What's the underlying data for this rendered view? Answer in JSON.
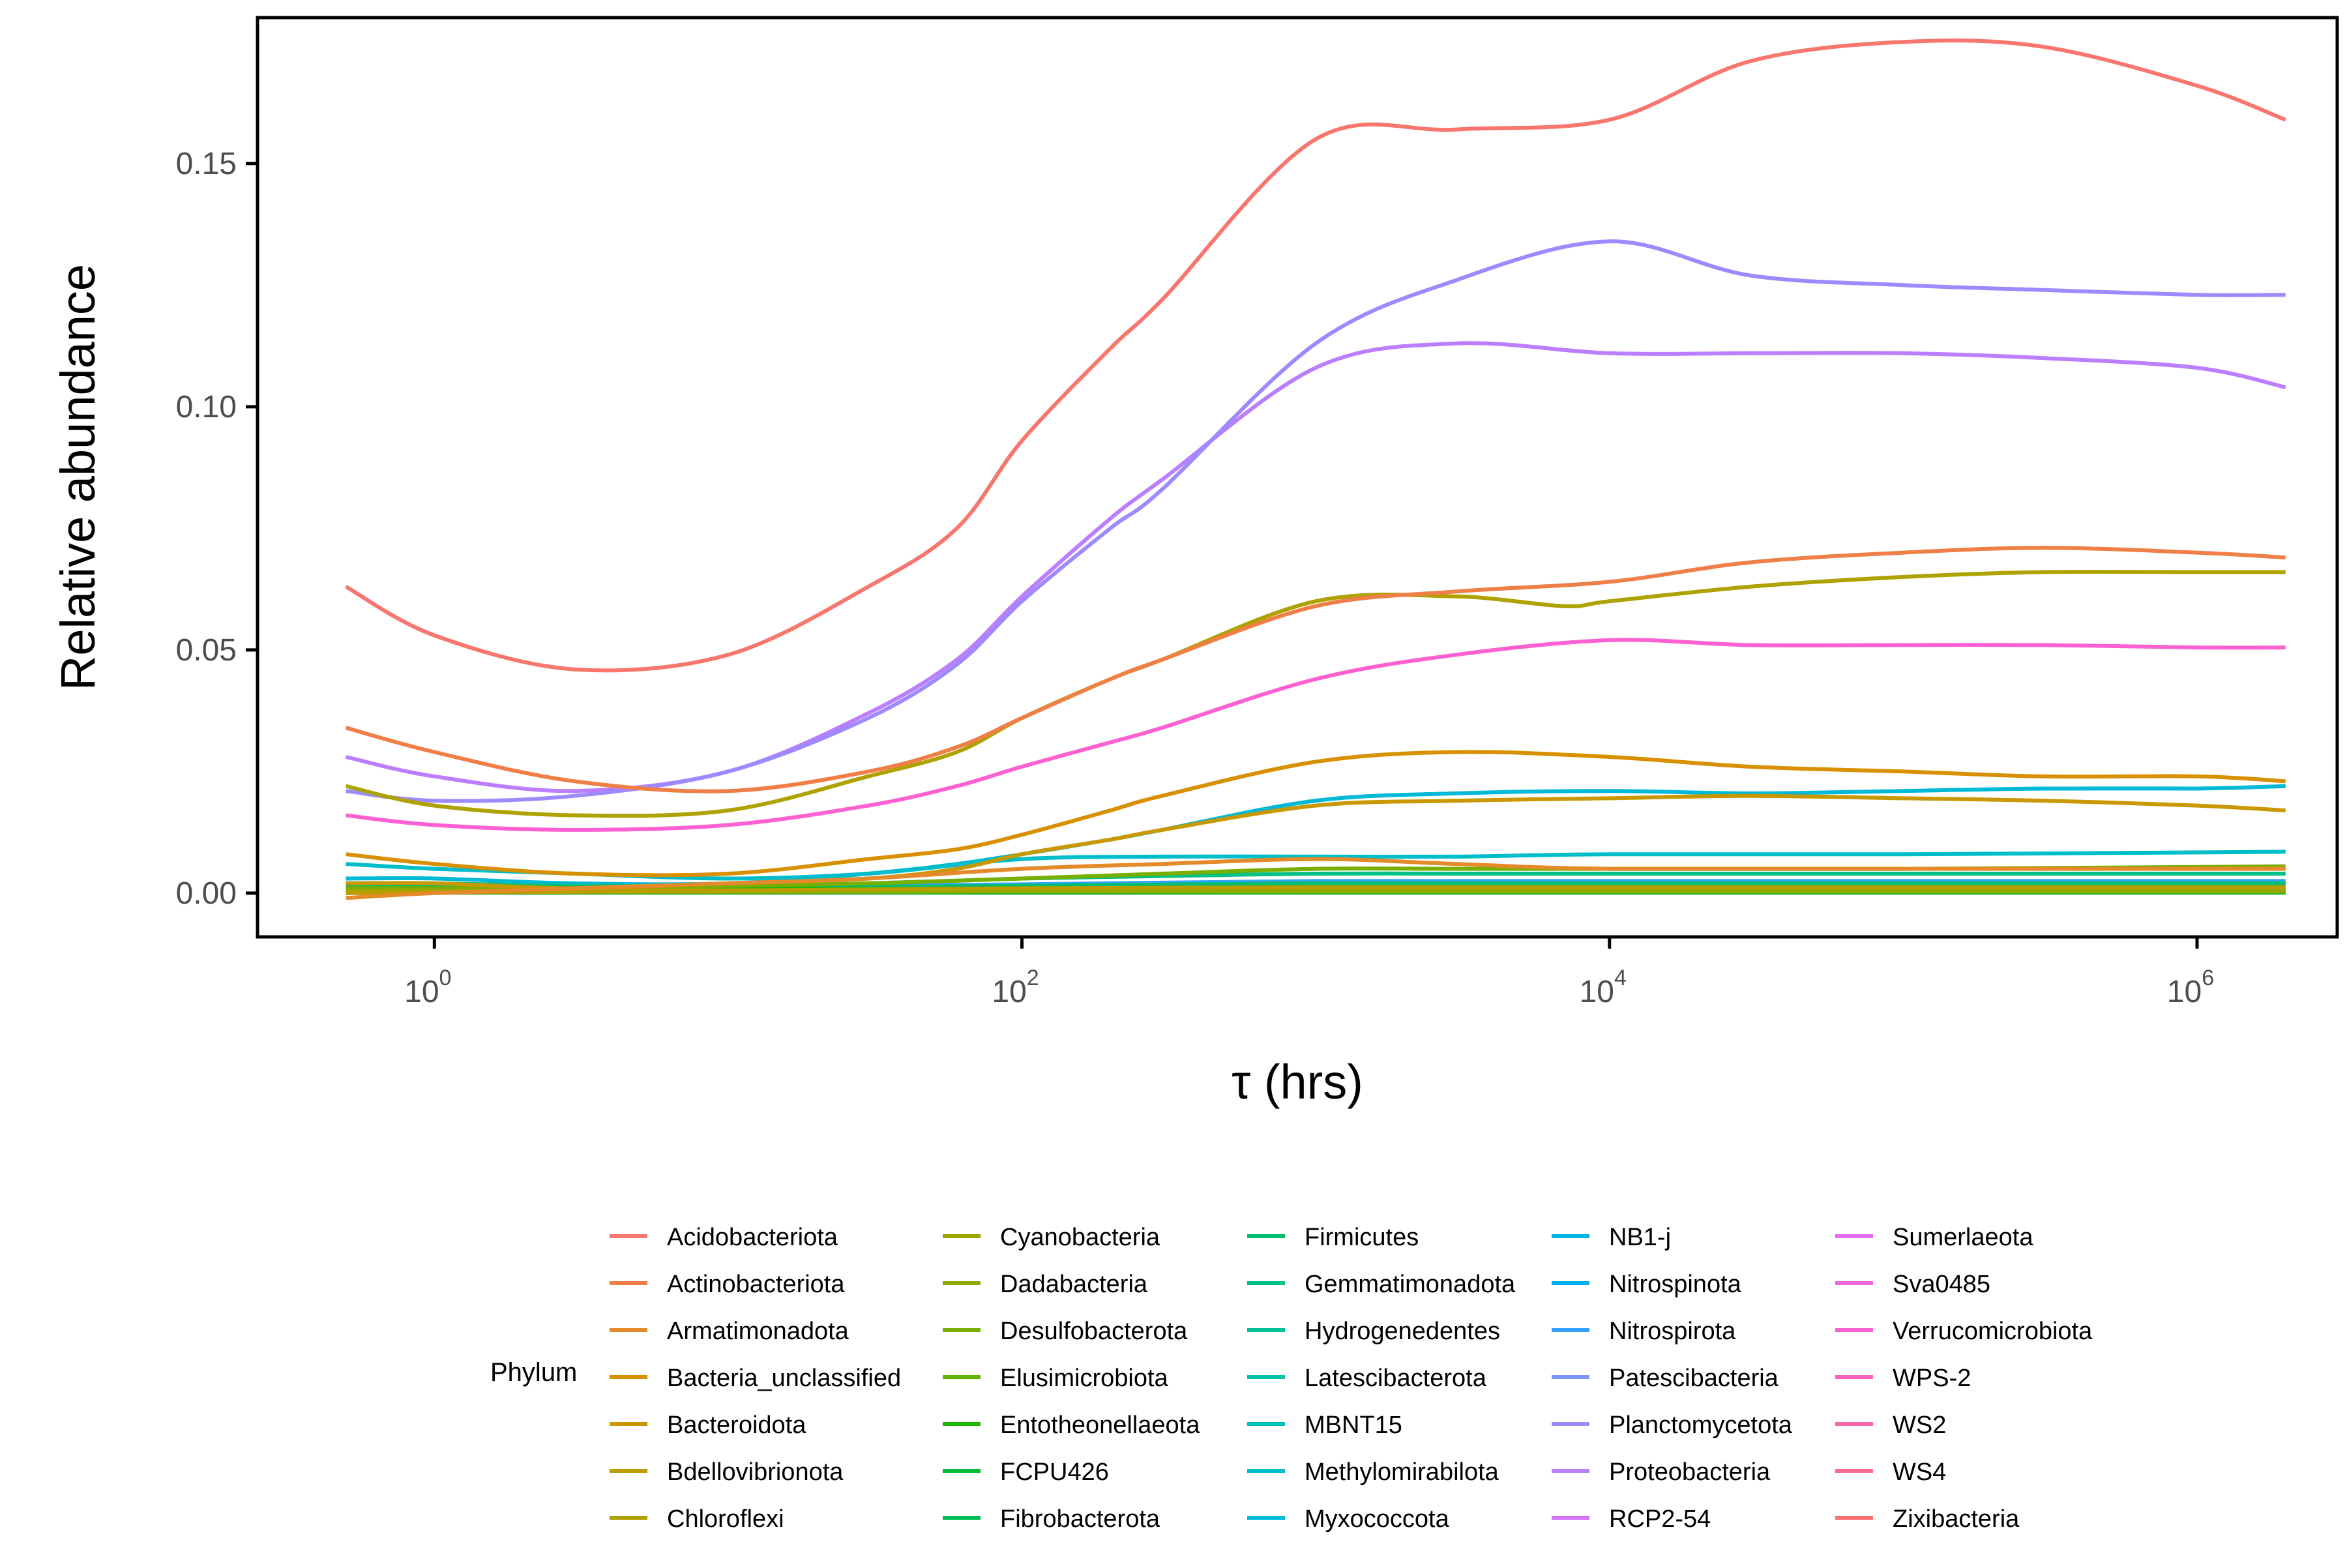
{
  "chart_data": {
    "type": "line",
    "title": "",
    "xlabel": "τ (hrs)",
    "ylabel": "Relative abundance",
    "x_scale": "log10",
    "xlim": [
      0.25,
      3000000
    ],
    "ylim": [
      -0.009,
      0.18
    ],
    "x_ticks": [
      {
        "value": 1,
        "base": "10",
        "exp": "0"
      },
      {
        "value": 100,
        "base": "10",
        "exp": "2"
      },
      {
        "value": 10000,
        "base": "10",
        "exp": "4"
      },
      {
        "value": 1000000,
        "base": "10",
        "exp": "6"
      }
    ],
    "y_ticks": [
      {
        "value": 0.0,
        "label": "0.00"
      },
      {
        "value": 0.05,
        "label": "0.05"
      },
      {
        "value": 0.1,
        "label": "0.10"
      },
      {
        "value": 0.15,
        "label": "0.15"
      }
    ],
    "grid": false,
    "legend": {
      "title": "Phylum",
      "placement": "bottom",
      "columns": 5
    },
    "series": [
      {
        "name": "Acidobacteriota",
        "color": "#F8766D",
        "x": [
          0.5,
          1,
          3,
          10,
          30,
          60,
          100,
          200,
          300,
          1000,
          3000,
          10000,
          30000,
          100000,
          300000,
          1000000,
          2000000
        ],
        "y": [
          0.063,
          0.053,
          0.046,
          0.049,
          0.063,
          0.075,
          0.093,
          0.112,
          0.122,
          0.155,
          0.157,
          0.159,
          0.171,
          0.175,
          0.174,
          0.166,
          0.159
        ]
      },
      {
        "name": "Actinobacteriota",
        "color": "#EF7F47",
        "x": [
          0.5,
          1,
          3,
          10,
          30,
          60,
          100,
          200,
          300,
          1000,
          3000,
          10000,
          30000,
          100000,
          300000,
          1000000,
          2000000
        ],
        "y": [
          0.034,
          0.029,
          0.023,
          0.021,
          0.025,
          0.03,
          0.036,
          0.044,
          0.048,
          0.059,
          0.062,
          0.064,
          0.068,
          0.07,
          0.071,
          0.07,
          0.069
        ]
      },
      {
        "name": "Armatimonadota",
        "color": "#E48A2A",
        "x": [
          0.5,
          1,
          3,
          10,
          30,
          100,
          300,
          1000,
          3000,
          10000,
          100000,
          2000000
        ],
        "y": [
          -0.001,
          0.0,
          0.001,
          0.002,
          0.003,
          0.005,
          0.006,
          0.007,
          0.006,
          0.005,
          0.005,
          0.005
        ]
      },
      {
        "name": "Bacteria_unclassified",
        "color": "#D89000",
        "x": [
          0.5,
          1,
          3,
          10,
          30,
          60,
          100,
          200,
          300,
          1000,
          3000,
          10000,
          30000,
          100000,
          300000,
          1000000,
          2000000
        ],
        "y": [
          0.008,
          0.006,
          0.004,
          0.004,
          0.007,
          0.009,
          0.012,
          0.017,
          0.02,
          0.027,
          0.029,
          0.028,
          0.026,
          0.025,
          0.024,
          0.024,
          0.023
        ]
      },
      {
        "name": "Bacteroidota",
        "color": "#C99800",
        "x": [
          0.5,
          1,
          3,
          10,
          30,
          60,
          100,
          200,
          300,
          1000,
          3000,
          10000,
          30000,
          100000,
          300000,
          1000000,
          2000000
        ],
        "y": [
          0.002,
          0.002,
          0.001,
          0.002,
          0.003,
          0.005,
          0.008,
          0.011,
          0.013,
          0.018,
          0.019,
          0.0195,
          0.02,
          0.0195,
          0.019,
          0.018,
          0.017
        ]
      },
      {
        "name": "Bdellovibrionota",
        "color": "#BB9D00",
        "x": [
          0.5,
          10,
          100,
          1000,
          10000,
          100000,
          2000000
        ],
        "y": [
          0.0,
          0.0005,
          0.001,
          0.0012,
          0.0012,
          0.0012,
          0.0012
        ]
      },
      {
        "name": "Chloroflexi",
        "color": "#AEA200",
        "x": [
          0.5,
          1,
          3,
          10,
          30,
          60,
          100,
          200,
          300,
          1000,
          3000,
          7000,
          10000,
          30000,
          100000,
          300000,
          1000000,
          2000000
        ],
        "y": [
          0.022,
          0.018,
          0.016,
          0.017,
          0.024,
          0.029,
          0.036,
          0.044,
          0.048,
          0.06,
          0.061,
          0.059,
          0.06,
          0.063,
          0.065,
          0.066,
          0.066,
          0.066
        ]
      },
      {
        "name": "Cyanobacteria",
        "color": "#9FA600",
        "x": [
          0.5,
          10,
          100,
          1000,
          10000,
          100000,
          2000000
        ],
        "y": [
          0.0005,
          0.0006,
          0.0008,
          0.001,
          0.001,
          0.001,
          0.001
        ]
      },
      {
        "name": "Dadabacteria",
        "color": "#8EAB00",
        "x": [
          0.5,
          10,
          100,
          1000,
          10000,
          100000,
          2000000
        ],
        "y": [
          0.0002,
          0.0003,
          0.0004,
          0.0004,
          0.0004,
          0.0004,
          0.0004
        ]
      },
      {
        "name": "Desulfobacterota",
        "color": "#78AF00",
        "x": [
          0.5,
          1,
          3,
          10,
          30,
          100,
          300,
          1000,
          3000,
          10000,
          100000,
          2000000
        ],
        "y": [
          0.001,
          0.001,
          0.001,
          0.0015,
          0.002,
          0.003,
          0.004,
          0.005,
          0.005,
          0.005,
          0.005,
          0.0055
        ]
      },
      {
        "name": "Elusimicrobiota",
        "color": "#5BB300",
        "x": [
          0.5,
          10,
          100,
          1000,
          10000,
          100000,
          2000000
        ],
        "y": [
          0.0002,
          0.0002,
          0.0003,
          0.0003,
          0.0003,
          0.0003,
          0.0003
        ]
      },
      {
        "name": "Entotheonellaeota",
        "color": "#1EB700",
        "x": [
          0.5,
          10,
          100,
          1000,
          10000,
          100000,
          2000000
        ],
        "y": [
          0.0008,
          0.0008,
          0.001,
          0.0012,
          0.0012,
          0.0012,
          0.0012
        ]
      },
      {
        "name": "FCPU426",
        "color": "#00BA38",
        "x": [
          0.5,
          10,
          100,
          1000,
          10000,
          100000,
          2000000
        ],
        "y": [
          0.0001,
          0.0001,
          0.0001,
          0.0001,
          0.0001,
          0.0001,
          0.0001
        ]
      },
      {
        "name": "Fibrobacterota",
        "color": "#00BC56",
        "x": [
          0.5,
          10,
          100,
          1000,
          10000,
          100000,
          2000000
        ],
        "y": [
          0.0002,
          0.0002,
          0.0003,
          0.0003,
          0.0003,
          0.0003,
          0.0003
        ]
      },
      {
        "name": "Firmicutes",
        "color": "#00BE6F",
        "x": [
          0.5,
          10,
          100,
          1000,
          10000,
          100000,
          2000000
        ],
        "y": [
          0.0015,
          0.0012,
          0.0015,
          0.002,
          0.002,
          0.002,
          0.002
        ]
      },
      {
        "name": "Gemmatimonadota",
        "color": "#00C085",
        "x": [
          0.5,
          1,
          3,
          10,
          30,
          100,
          300,
          1000,
          3000,
          10000,
          100000,
          2000000
        ],
        "y": [
          0.002,
          0.002,
          0.0015,
          0.0015,
          0.002,
          0.003,
          0.0035,
          0.004,
          0.004,
          0.004,
          0.004,
          0.004
        ]
      },
      {
        "name": "Hydrogenedentes",
        "color": "#00C19A",
        "x": [
          0.5,
          10,
          100,
          1000,
          10000,
          100000,
          2000000
        ],
        "y": [
          0.0002,
          0.0002,
          0.0003,
          0.0003,
          0.0003,
          0.0003,
          0.0003
        ]
      },
      {
        "name": "Latescibacterota",
        "color": "#00C1AB",
        "x": [
          0.5,
          10,
          100,
          1000,
          10000,
          100000,
          2000000
        ],
        "y": [
          0.0003,
          0.0003,
          0.0004,
          0.0005,
          0.0005,
          0.0005,
          0.0005
        ]
      },
      {
        "name": "MBNT15",
        "color": "#00C0BB",
        "x": [
          0.5,
          10,
          100,
          1000,
          10000,
          100000,
          2000000
        ],
        "y": [
          0.0001,
          0.0001,
          0.0002,
          0.0002,
          0.0002,
          0.0002,
          0.0002
        ]
      },
      {
        "name": "Methylomirabilota",
        "color": "#00BDCA",
        "x": [
          0.5,
          1,
          3,
          10,
          30,
          100,
          300,
          1000,
          3000,
          10000,
          100000,
          2000000
        ],
        "y": [
          0.006,
          0.005,
          0.004,
          0.003,
          0.004,
          0.007,
          0.0075,
          0.0075,
          0.0075,
          0.008,
          0.008,
          0.0085
        ]
      },
      {
        "name": "Myxococcota",
        "color": "#00B9D6",
        "x": [
          0.5,
          1,
          3,
          10,
          30,
          60,
          100,
          200,
          300,
          1000,
          3000,
          10000,
          30000,
          100000,
          300000,
          1000000,
          2000000
        ],
        "y": [
          0.003,
          0.003,
          0.002,
          0.002,
          0.004,
          0.006,
          0.008,
          0.011,
          0.013,
          0.019,
          0.0205,
          0.021,
          0.0205,
          0.021,
          0.0215,
          0.0215,
          0.022
        ]
      },
      {
        "name": "NB1-j",
        "color": "#00B4E3",
        "x": [
          0.5,
          10,
          100,
          1000,
          10000,
          100000,
          2000000
        ],
        "y": [
          0.0005,
          0.0005,
          0.0006,
          0.0007,
          0.0007,
          0.0007,
          0.0007
        ]
      },
      {
        "name": "Nitrospinota",
        "color": "#00ADEE",
        "x": [
          0.5,
          10,
          100,
          1000,
          10000,
          100000,
          2000000
        ],
        "y": [
          0.0003,
          0.0003,
          0.0004,
          0.0004,
          0.0004,
          0.0004,
          0.0004
        ]
      },
      {
        "name": "Nitrospirota",
        "color": "#35A2FF",
        "x": [
          0.5,
          10,
          100,
          1000,
          10000,
          100000,
          2000000
        ],
        "y": [
          0.002,
          0.0015,
          0.0018,
          0.0025,
          0.0025,
          0.0025,
          0.0025
        ]
      },
      {
        "name": "Patescibacteria",
        "color": "#7997FF",
        "x": [
          0.5,
          10,
          100,
          1000,
          10000,
          100000,
          2000000
        ],
        "y": [
          0.001,
          0.0008,
          0.001,
          0.0015,
          0.0015,
          0.0015,
          0.0015
        ]
      },
      {
        "name": "Planctomycetota",
        "color": "#9E8AFF",
        "x": [
          0.5,
          1,
          3,
          10,
          30,
          60,
          100,
          200,
          300,
          1000,
          3000,
          10000,
          30000,
          100000,
          300000,
          1000000,
          2000000
        ],
        "y": [
          0.021,
          0.019,
          0.02,
          0.025,
          0.036,
          0.047,
          0.06,
          0.075,
          0.083,
          0.113,
          0.126,
          0.134,
          0.127,
          0.125,
          0.124,
          0.123,
          0.123
        ]
      },
      {
        "name": "Proteobacteria",
        "color": "#BB7EFF",
        "x": [
          0.5,
          1,
          3,
          10,
          30,
          60,
          100,
          200,
          300,
          1000,
          3000,
          10000,
          30000,
          100000,
          300000,
          1000000,
          2000000
        ],
        "y": [
          0.028,
          0.024,
          0.021,
          0.025,
          0.037,
          0.048,
          0.061,
          0.077,
          0.085,
          0.108,
          0.113,
          0.111,
          0.111,
          0.111,
          0.11,
          0.108,
          0.104
        ]
      },
      {
        "name": "RCP2-54",
        "color": "#D374FA",
        "x": [
          0.5,
          10,
          100,
          1000,
          10000,
          100000,
          2000000
        ],
        "y": [
          0.0003,
          0.0003,
          0.0004,
          0.0005,
          0.0005,
          0.0005,
          0.0005
        ]
      },
      {
        "name": "Sumerlaeota",
        "color": "#E56DEF",
        "x": [
          0.5,
          10,
          100,
          1000,
          10000,
          100000,
          2000000
        ],
        "y": [
          0.0002,
          0.0002,
          0.0002,
          0.0002,
          0.0002,
          0.0002,
          0.0002
        ]
      },
      {
        "name": "Sva0485",
        "color": "#F265E0",
        "x": [
          0.5,
          10,
          100,
          1000,
          10000,
          100000,
          2000000
        ],
        "y": [
          0.0004,
          0.0004,
          0.0005,
          0.0005,
          0.0005,
          0.0005,
          0.0005
        ]
      },
      {
        "name": "Verrucomicrobiota",
        "color": "#FD61D1",
        "x": [
          0.5,
          1,
          3,
          10,
          30,
          60,
          100,
          200,
          300,
          1000,
          3000,
          10000,
          30000,
          100000,
          300000,
          1000000,
          2000000
        ],
        "y": [
          0.016,
          0.014,
          0.013,
          0.014,
          0.018,
          0.022,
          0.026,
          0.031,
          0.034,
          0.044,
          0.049,
          0.052,
          0.051,
          0.051,
          0.051,
          0.0505,
          0.0505
        ]
      },
      {
        "name": "WPS-2",
        "color": "#FF62BC",
        "x": [
          0.5,
          10,
          100,
          1000,
          10000,
          100000,
          2000000
        ],
        "y": [
          0.0001,
          0.0001,
          0.0001,
          0.0001,
          0.0001,
          0.0001,
          0.0001
        ]
      },
      {
        "name": "WS2",
        "color": "#FF66A5",
        "x": [
          0.5,
          10,
          100,
          1000,
          10000,
          100000,
          2000000
        ],
        "y": [
          0.0002,
          0.0002,
          0.0002,
          0.0002,
          0.0002,
          0.0002,
          0.0002
        ]
      },
      {
        "name": "WS4",
        "color": "#FF6C90",
        "x": [
          0.5,
          10,
          100,
          1000,
          10000,
          100000,
          2000000
        ],
        "y": [
          0.0001,
          0.0001,
          0.0001,
          0.0001,
          0.0001,
          0.0001,
          0.0001
        ]
      },
      {
        "name": "Zixibacteria",
        "color": "#FF6E6E",
        "x": [
          0.5,
          10,
          100,
          1000,
          10000,
          100000,
          2000000
        ],
        "y": [
          0.0002,
          0.0002,
          0.0002,
          0.0002,
          0.0002,
          0.0002,
          0.0002
        ]
      }
    ]
  }
}
